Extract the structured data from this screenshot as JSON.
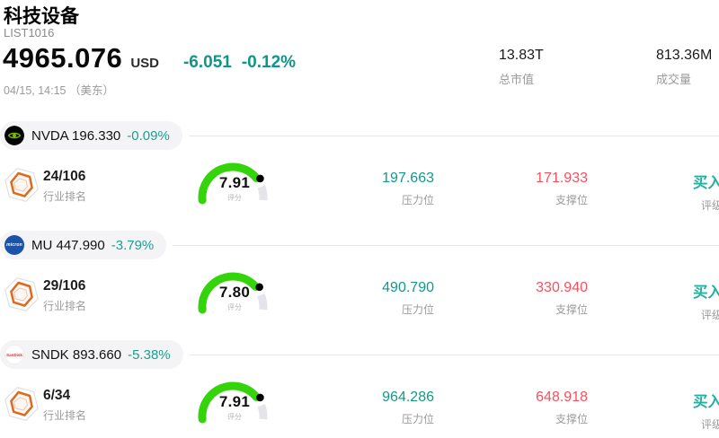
{
  "header": {
    "title": "科技设备",
    "list_id": "LIST1016",
    "price": "4965.076",
    "currency": "USD",
    "change": "-6.051",
    "change_pct": "-0.12%",
    "timestamp": "04/15, 14:15 （美东）",
    "market_cap": {
      "value": "13.83T",
      "label": "总市值"
    },
    "volume": {
      "value": "813.36M",
      "label": "成交量"
    }
  },
  "labels": {
    "rank": "行业排名",
    "score": "评分",
    "resistance": "压力位",
    "support": "支撑位",
    "rating": "评级"
  },
  "colors": {
    "accent_teal": "#0f9688",
    "value_teal": "#129a89",
    "rating_teal": "#23b0a0",
    "support_red": "#f5505c",
    "gauge_green": "#33d40a",
    "gauge_track": "#e4e4ea",
    "gauge_dot": "#000000",
    "pill_bg": "#f4f4f6",
    "hex_orange": "#dd6b1f",
    "nvidia_green": "#76b900",
    "micron_blue": "#1d53a6",
    "sandisk_red": "#e02a2a",
    "label_gray": "#9b9b9b"
  },
  "stocks": [
    {
      "symbol": "NVDA",
      "price": "196.330",
      "change_pct": "-0.09%",
      "logo": "nvda",
      "rank": "24/106",
      "score": "7.91",
      "score_max": 10,
      "resistance": "197.663",
      "support": "171.933",
      "rating": "买入"
    },
    {
      "symbol": "MU",
      "price": "447.990",
      "change_pct": "-3.79%",
      "logo": "mu",
      "rank": "29/106",
      "score": "7.80",
      "score_max": 10,
      "resistance": "490.790",
      "support": "330.940",
      "rating": "买入"
    },
    {
      "symbol": "SNDK",
      "price": "893.660",
      "change_pct": "-5.38%",
      "logo": "sndk",
      "rank": "6/34",
      "score": "7.91",
      "score_max": 10,
      "resistance": "964.286",
      "support": "648.918",
      "rating": "买入"
    }
  ]
}
